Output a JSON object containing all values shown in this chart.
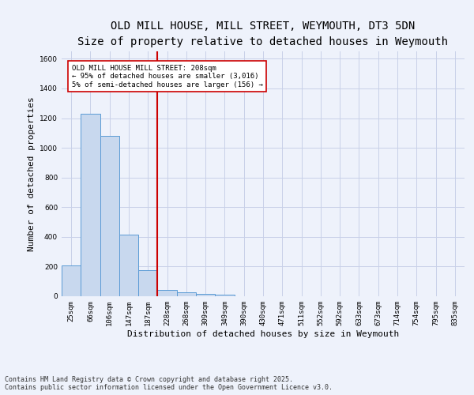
{
  "title_line1": "OLD MILL HOUSE, MILL STREET, WEYMOUTH, DT3 5DN",
  "title_line2": "Size of property relative to detached houses in Weymouth",
  "xlabel": "Distribution of detached houses by size in Weymouth",
  "ylabel": "Number of detached properties",
  "bar_color": "#c8d8ee",
  "bar_edge_color": "#5b9bd5",
  "categories": [
    "25sqm",
    "66sqm",
    "106sqm",
    "147sqm",
    "187sqm",
    "228sqm",
    "268sqm",
    "309sqm",
    "349sqm",
    "390sqm",
    "430sqm",
    "471sqm",
    "511sqm",
    "552sqm",
    "592sqm",
    "633sqm",
    "673sqm",
    "714sqm",
    "754sqm",
    "795sqm",
    "835sqm"
  ],
  "values": [
    207,
    1232,
    1078,
    415,
    178,
    45,
    25,
    18,
    10,
    0,
    0,
    0,
    0,
    0,
    0,
    0,
    0,
    0,
    0,
    0,
    0
  ],
  "ylim": [
    0,
    1650
  ],
  "yticks": [
    0,
    200,
    400,
    600,
    800,
    1000,
    1200,
    1400,
    1600
  ],
  "vline_pos": 4.5,
  "vline_color": "#cc0000",
  "annotation_text": "OLD MILL HOUSE MILL STREET: 208sqm\n← 95% of detached houses are smaller (3,016)\n5% of semi-detached houses are larger (156) →",
  "background_color": "#eef2fb",
  "plot_bg_color": "#eef2fb",
  "footer_line1": "Contains HM Land Registry data © Crown copyright and database right 2025.",
  "footer_line2": "Contains public sector information licensed under the Open Government Licence v3.0.",
  "title_fontsize": 10,
  "subtitle_fontsize": 9,
  "tick_fontsize": 6.5,
  "ylabel_fontsize": 8,
  "xlabel_fontsize": 8,
  "annotation_fontsize": 6.5,
  "footer_fontsize": 6
}
